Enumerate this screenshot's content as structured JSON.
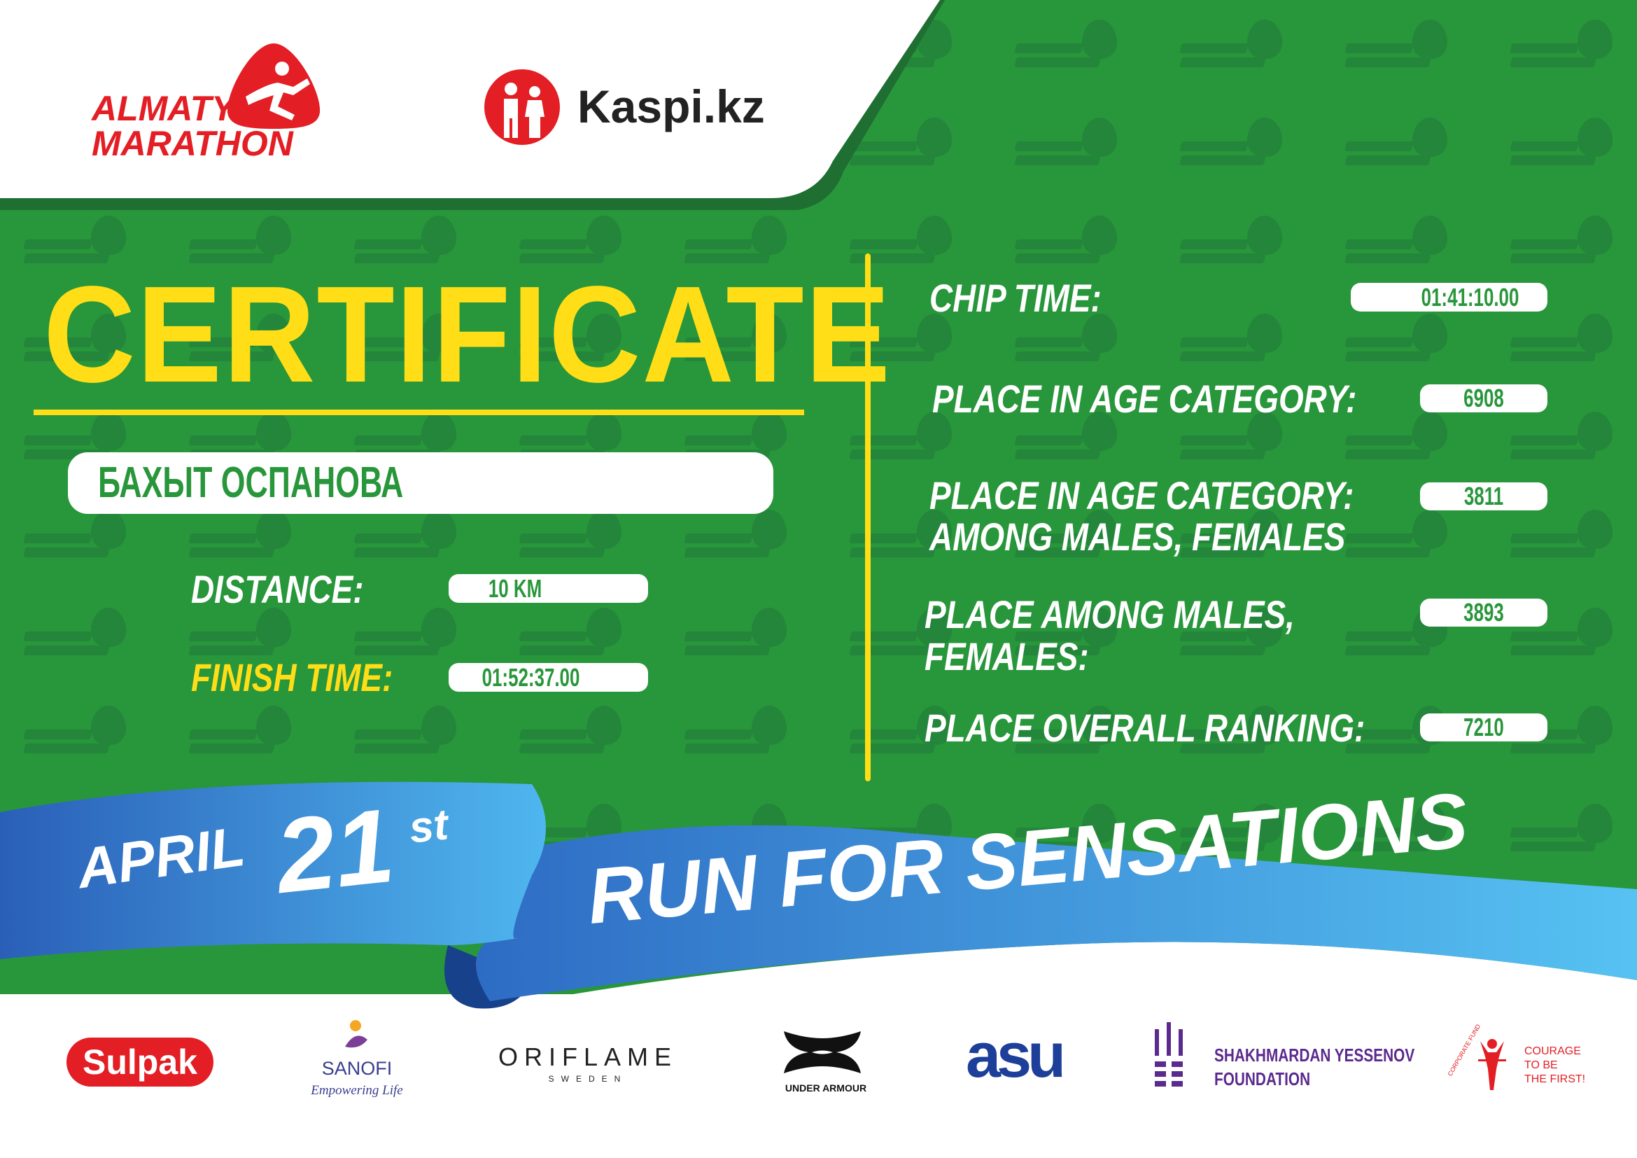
{
  "header": {
    "event_logo_line1": "ALMATY",
    "event_logo_line2": "MARATHON",
    "sponsor_logo": "Kaspi.kz"
  },
  "certificate": {
    "title": "CERTIFICATE",
    "participant_name": "БАХЫТ ОСПАНОВА",
    "distance_label": "DISTANCE:",
    "distance_value": "10 KM",
    "finish_time_label": "FINISH TIME:",
    "finish_time_value": "01:52:37.00"
  },
  "results": {
    "chip_time_label": "CHIP TIME:",
    "chip_time_value": "01:41:10.00",
    "place_age_label": "PLACE IN AGE CATEGORY:",
    "place_age_value": "6908",
    "place_age_gender_label_1": "PLACE IN AGE CATEGORY:",
    "place_age_gender_label_2": "AMONG MALES, FEMALES",
    "place_age_gender_value": "3811",
    "place_gender_label_1": "PLACE AMONG MALES,",
    "place_gender_label_2": "FEMALES:",
    "place_gender_value": "3893",
    "place_overall_label": "PLACE OVERALL RANKING:",
    "place_overall_value": "7210"
  },
  "ribbon": {
    "month": "APRIL",
    "day": "21",
    "suffix": "st",
    "slogan": "RUN FOR SENSATIONS"
  },
  "sponsors": {
    "sulpak": "Sulpak",
    "sanofi": "SANOFI",
    "sanofi_tagline": "Empowering Life",
    "oriflame": "ORIFLAME",
    "oriflame_sub": "SWEDEN",
    "under_armour": "UNDER ARMOUR",
    "asu": "asu",
    "yessenov_1": "SHAKHMARDAN YESSENOV",
    "yessenov_2": "FOUNDATION",
    "courage_arc": "CORPORATE FUND",
    "courage_1": "COURAGE",
    "courage_2": "TO BE",
    "courage_3": "THE FIRST!"
  },
  "watermark": "ALMATY MARATHON",
  "colors": {
    "green": "#28963a",
    "dark_green": "#1f6e32",
    "yellow": "#ffde17",
    "red": "#e31e24",
    "blue": "#2e72c8",
    "light_blue": "#54bdf0",
    "purple": "#5b2a8e"
  }
}
